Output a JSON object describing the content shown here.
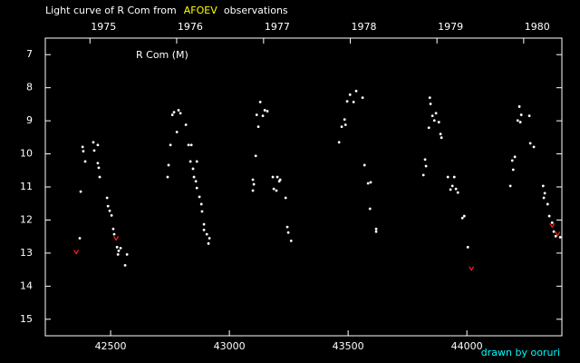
{
  "chart_data": {
    "type": "scatter",
    "title_parts": [
      {
        "text": "Light curve of R Com from",
        "color": "#ffffff"
      },
      {
        "text": "AFOEV",
        "color": "#ffff00"
      },
      {
        "text": "observations",
        "color": "#ffffff"
      }
    ],
    "annotation": "R Com (M)",
    "footer": {
      "text": "drawn by ooruri",
      "color": "#00ffff"
    },
    "xlim": [
      42225,
      44400
    ],
    "xticks": [
      42500,
      43000,
      43500,
      44000
    ],
    "x2ticks": [
      {
        "value": 42413,
        "label": "1975"
      },
      {
        "value": 42778,
        "label": "1976"
      },
      {
        "value": 43144,
        "label": "1977"
      },
      {
        "value": 43509,
        "label": "1978"
      },
      {
        "value": 43874,
        "label": "1979"
      },
      {
        "value": 44239,
        "label": "1980"
      }
    ],
    "ylim": [
      15.5,
      6.5
    ],
    "yticks": [
      7,
      8,
      9,
      10,
      11,
      12,
      13,
      14,
      15
    ],
    "series": [
      {
        "color": "#ffffff",
        "marker": "dot",
        "x": [
          42374,
          42370,
          42382,
          42385,
          42393,
          42427,
          42431,
          42446,
          42446,
          42450,
          42454,
          42485,
          42489,
          42496,
          42504,
          42511,
          42515,
          42527,
          42534,
          42531,
          42542,
          42561,
          42569,
          42740,
          42744,
          42752,
          42760,
          42767,
          42779,
          42786,
          42794,
          42817,
          42828,
          42840,
          42836,
          42847,
          42851,
          42859,
          42863,
          42874,
          42882,
          42885,
          42893,
          42893,
          42905,
          42912,
          42916,
          42863,
          43099,
          43099,
          43103,
          43111,
          43115,
          43122,
          43130,
          43141,
          43149,
          43160,
          43183,
          43187,
          43198,
          43202,
          43210,
          43214,
          43237,
          43244,
          43248,
          43260,
          43462,
          43473,
          43485,
          43489,
          43496,
          43508,
          43523,
          43534,
          43561,
          43569,
          43584,
          43595,
          43592,
          43618,
          43618,
          43817,
          43824,
          43828,
          43840,
          43844,
          43847,
          43855,
          43863,
          43870,
          43882,
          43889,
          43893,
          43920,
          43931,
          43939,
          43947,
          43954,
          43962,
          43981,
          43989,
          44004,
          44183,
          44191,
          44195,
          44202,
          44214,
          44221,
          44229,
          44225,
          44263,
          44267,
          44282,
          44321,
          44328,
          44324,
          44340,
          44347,
          44359,
          44366,
          44374,
          44393
        ],
        "values": [
          11.14,
          12.55,
          9.79,
          9.92,
          10.23,
          9.65,
          9.9,
          9.73,
          10.28,
          10.42,
          10.7,
          11.33,
          11.58,
          11.72,
          11.86,
          12.27,
          12.43,
          12.82,
          12.93,
          13.04,
          12.85,
          13.37,
          13.04,
          10.7,
          10.34,
          9.73,
          8.82,
          8.74,
          9.34,
          8.68,
          8.77,
          9.12,
          9.73,
          9.73,
          10.23,
          10.45,
          10.7,
          10.83,
          11.03,
          11.3,
          11.52,
          11.74,
          12.13,
          12.3,
          12.43,
          12.71,
          12.55,
          10.23,
          10.78,
          11.11,
          10.92,
          10.06,
          8.82,
          9.18,
          8.43,
          8.85,
          8.68,
          8.71,
          10.7,
          11.06,
          11.11,
          10.7,
          10.83,
          10.78,
          11.33,
          12.21,
          12.38,
          12.63,
          9.65,
          9.18,
          8.96,
          9.12,
          8.41,
          8.21,
          8.43,
          8.1,
          8.3,
          10.34,
          10.89,
          10.86,
          11.66,
          12.27,
          12.35,
          10.64,
          10.17,
          10.37,
          9.21,
          8.3,
          8.49,
          8.85,
          8.99,
          8.77,
          9.04,
          9.4,
          9.51,
          10.7,
          11.08,
          10.97,
          10.7,
          11.06,
          11.17,
          11.94,
          11.88,
          12.82,
          10.97,
          10.2,
          10.48,
          10.09,
          8.99,
          8.57,
          8.82,
          9.04,
          8.85,
          9.68,
          9.79,
          10.97,
          11.19,
          11.33,
          11.52,
          11.88,
          12.08,
          12.35,
          12.49,
          12.52
        ]
      },
      {
        "color": "#ff2020",
        "marker": "v",
        "x": [
          42355,
          42523,
          44019,
          44359,
          44382
        ],
        "values": [
          12.96,
          12.55,
          13.46,
          12.16,
          12.41
        ]
      }
    ]
  }
}
